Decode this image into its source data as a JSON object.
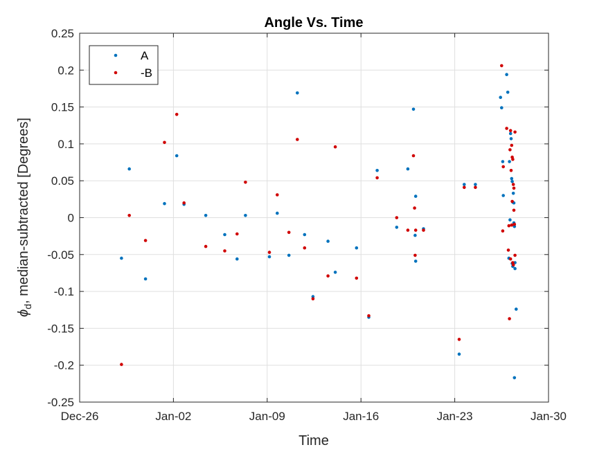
{
  "chart_data": {
    "type": "scatter",
    "title": "Angle Vs. Time",
    "xlabel": "Time",
    "ylabel": "ϕ_d, median-subtracted [Degrees]",
    "ylabel_symbol": "ϕ",
    "ylabel_subscript": "d",
    "ylabel_rest": ", median-subtracted [Degrees]",
    "x_axis": {
      "type": "date",
      "range": [
        "Dec-26",
        "Jan-30"
      ],
      "ticks": [
        "Dec-26",
        "Jan-02",
        "Jan-09",
        "Jan-16",
        "Jan-23",
        "Jan-30"
      ]
    },
    "ylim": [
      -0.25,
      0.25
    ],
    "yticks": [
      "-0.25",
      "-0.2",
      "-0.15",
      "-0.1",
      "-0.05",
      "0",
      "0.05",
      "0.1",
      "0.15",
      "0.2",
      "0.25"
    ],
    "grid": true,
    "legend": {
      "placement": "top-left",
      "entries": [
        "A",
        "-B"
      ]
    },
    "series": [
      {
        "name": "A",
        "color": "#0072BD",
        "points": [
          [
            "Dec-29 03:00",
            -0.055
          ],
          [
            "Dec-29 17:00",
            0.066
          ],
          [
            "Dec-30 22:00",
            -0.083
          ],
          [
            "Jan-01 08:00",
            0.019
          ],
          [
            "Jan-02 06:00",
            0.084
          ],
          [
            "Jan-02 19:00",
            0.018
          ],
          [
            "Jan-04 10:00",
            0.003
          ],
          [
            "Jan-05 20:00",
            -0.023
          ],
          [
            "Jan-06 18:00",
            -0.056
          ],
          [
            "Jan-07 09:00",
            0.003
          ],
          [
            "Jan-09 04:00",
            -0.053
          ],
          [
            "Jan-09 18:00",
            0.006
          ],
          [
            "Jan-10 15:00",
            -0.051
          ],
          [
            "Jan-11 06:00",
            0.169
          ],
          [
            "Jan-11 19:00",
            -0.023
          ],
          [
            "Jan-12 10:00",
            -0.107
          ],
          [
            "Jan-13 13:00",
            -0.032
          ],
          [
            "Jan-14 02:00",
            -0.074
          ],
          [
            "Jan-15 16:00",
            -0.041
          ],
          [
            "Jan-16 14:00",
            -0.135
          ],
          [
            "Jan-17 05:00",
            0.064
          ],
          [
            "Jan-18 16:00",
            -0.013
          ],
          [
            "Jan-19 12:00",
            0.066
          ],
          [
            "Jan-19 22:00",
            0.147
          ],
          [
            "Jan-20 02:00",
            -0.059
          ],
          [
            "Jan-20 01:00",
            -0.024
          ],
          [
            "Jan-20 02:00",
            0.029
          ],
          [
            "Jan-20 16:00",
            -0.015
          ],
          [
            "Jan-23 08:00",
            -0.185
          ],
          [
            "Jan-23 17:00",
            0.045
          ],
          [
            "Jan-24 13:00",
            0.045
          ],
          [
            "Jan-26 10:00",
            0.163
          ],
          [
            "Jan-26 12:00",
            0.149
          ],
          [
            "Jan-26 14:00",
            0.076
          ],
          [
            "Jan-26 15:00",
            0.03
          ],
          [
            "Jan-26 21:00",
            0.194
          ],
          [
            "Jan-26 23:00",
            0.17
          ],
          [
            "Jan-27 01:00",
            -0.055
          ],
          [
            "Jan-27 02:00",
            0.076
          ],
          [
            "Jan-27 03:00",
            -0.003
          ],
          [
            "Jan-27 04:00",
            0.114
          ],
          [
            "Jan-27 05:00",
            0.107
          ],
          [
            "Jan-27 06:00",
            0.053
          ],
          [
            "Jan-27 07:00",
            0.049
          ],
          [
            "Jan-27 07:00",
            -0.062
          ],
          [
            "Jan-27 08:00",
            -0.066
          ],
          [
            "Jan-27 08:00",
            0.021
          ],
          [
            "Jan-27 09:00",
            0.033
          ],
          [
            "Jan-27 10:00",
            -0.007
          ],
          [
            "Jan-27 10:00",
            0.02
          ],
          [
            "Jan-27 11:00",
            -0.012
          ],
          [
            "Jan-27 12:00",
            -0.061
          ],
          [
            "Jan-27 12:00",
            -0.069
          ],
          [
            "Jan-27 11:00",
            -0.217
          ],
          [
            "Jan-27 14:00",
            -0.124
          ]
        ]
      },
      {
        "name": "-B",
        "color": "#D00000",
        "points": [
          [
            "Dec-29 03:00",
            -0.199
          ],
          [
            "Dec-29 17:00",
            0.003
          ],
          [
            "Dec-30 22:00",
            -0.031
          ],
          [
            "Jan-01 08:00",
            0.102
          ],
          [
            "Jan-02 06:00",
            0.14
          ],
          [
            "Jan-02 19:00",
            0.02
          ],
          [
            "Jan-04 10:00",
            -0.039
          ],
          [
            "Jan-05 20:00",
            -0.045
          ],
          [
            "Jan-06 18:00",
            -0.022
          ],
          [
            "Jan-07 09:00",
            0.048
          ],
          [
            "Jan-09 04:00",
            -0.047
          ],
          [
            "Jan-09 18:00",
            0.031
          ],
          [
            "Jan-10 15:00",
            -0.02
          ],
          [
            "Jan-11 06:00",
            0.106
          ],
          [
            "Jan-11 19:00",
            -0.041
          ],
          [
            "Jan-12 10:00",
            -0.11
          ],
          [
            "Jan-13 13:00",
            -0.079
          ],
          [
            "Jan-14 02:00",
            0.096
          ],
          [
            "Jan-15 16:00",
            -0.082
          ],
          [
            "Jan-16 14:00",
            -0.133
          ],
          [
            "Jan-17 05:00",
            0.054
          ],
          [
            "Jan-18 16:00",
            0.0
          ],
          [
            "Jan-19 12:00",
            -0.017
          ],
          [
            "Jan-19 22:00",
            0.084
          ],
          [
            "Jan-20 00:00",
            0.013
          ],
          [
            "Jan-20 01:00",
            -0.051
          ],
          [
            "Jan-20 02:00",
            -0.017
          ],
          [
            "Jan-20 16:00",
            -0.017
          ],
          [
            "Jan-23 08:00",
            -0.165
          ],
          [
            "Jan-23 17:00",
            0.041
          ],
          [
            "Jan-24 13:00",
            0.041
          ],
          [
            "Jan-26 12:00",
            0.206
          ],
          [
            "Jan-26 14:00",
            -0.018
          ],
          [
            "Jan-26 15:00",
            0.069
          ],
          [
            "Jan-26 21:00",
            0.121
          ],
          [
            "Jan-27 00:00",
            -0.044
          ],
          [
            "Jan-27 01:00",
            -0.011
          ],
          [
            "Jan-27 02:00",
            -0.137
          ],
          [
            "Jan-27 03:00",
            0.092
          ],
          [
            "Jan-27 04:00",
            0.118
          ],
          [
            "Jan-27 04:00",
            -0.056
          ],
          [
            "Jan-27 05:00",
            0.064
          ],
          [
            "Jan-27 06:00",
            -0.01
          ],
          [
            "Jan-27 06:00",
            0.098
          ],
          [
            "Jan-27 07:00",
            0.082
          ],
          [
            "Jan-27 07:00",
            0.022
          ],
          [
            "Jan-27 08:00",
            -0.061
          ],
          [
            "Jan-27 08:00",
            0.079
          ],
          [
            "Jan-27 09:00",
            0.045
          ],
          [
            "Jan-27 09:00",
            -0.064
          ],
          [
            "Jan-27 10:00",
            0.04
          ],
          [
            "Jan-27 10:00",
            0.01
          ],
          [
            "Jan-27 11:00",
            -0.009
          ],
          [
            "Jan-27 12:00",
            -0.051
          ],
          [
            "Jan-27 12:00",
            0.116
          ]
        ]
      }
    ]
  }
}
